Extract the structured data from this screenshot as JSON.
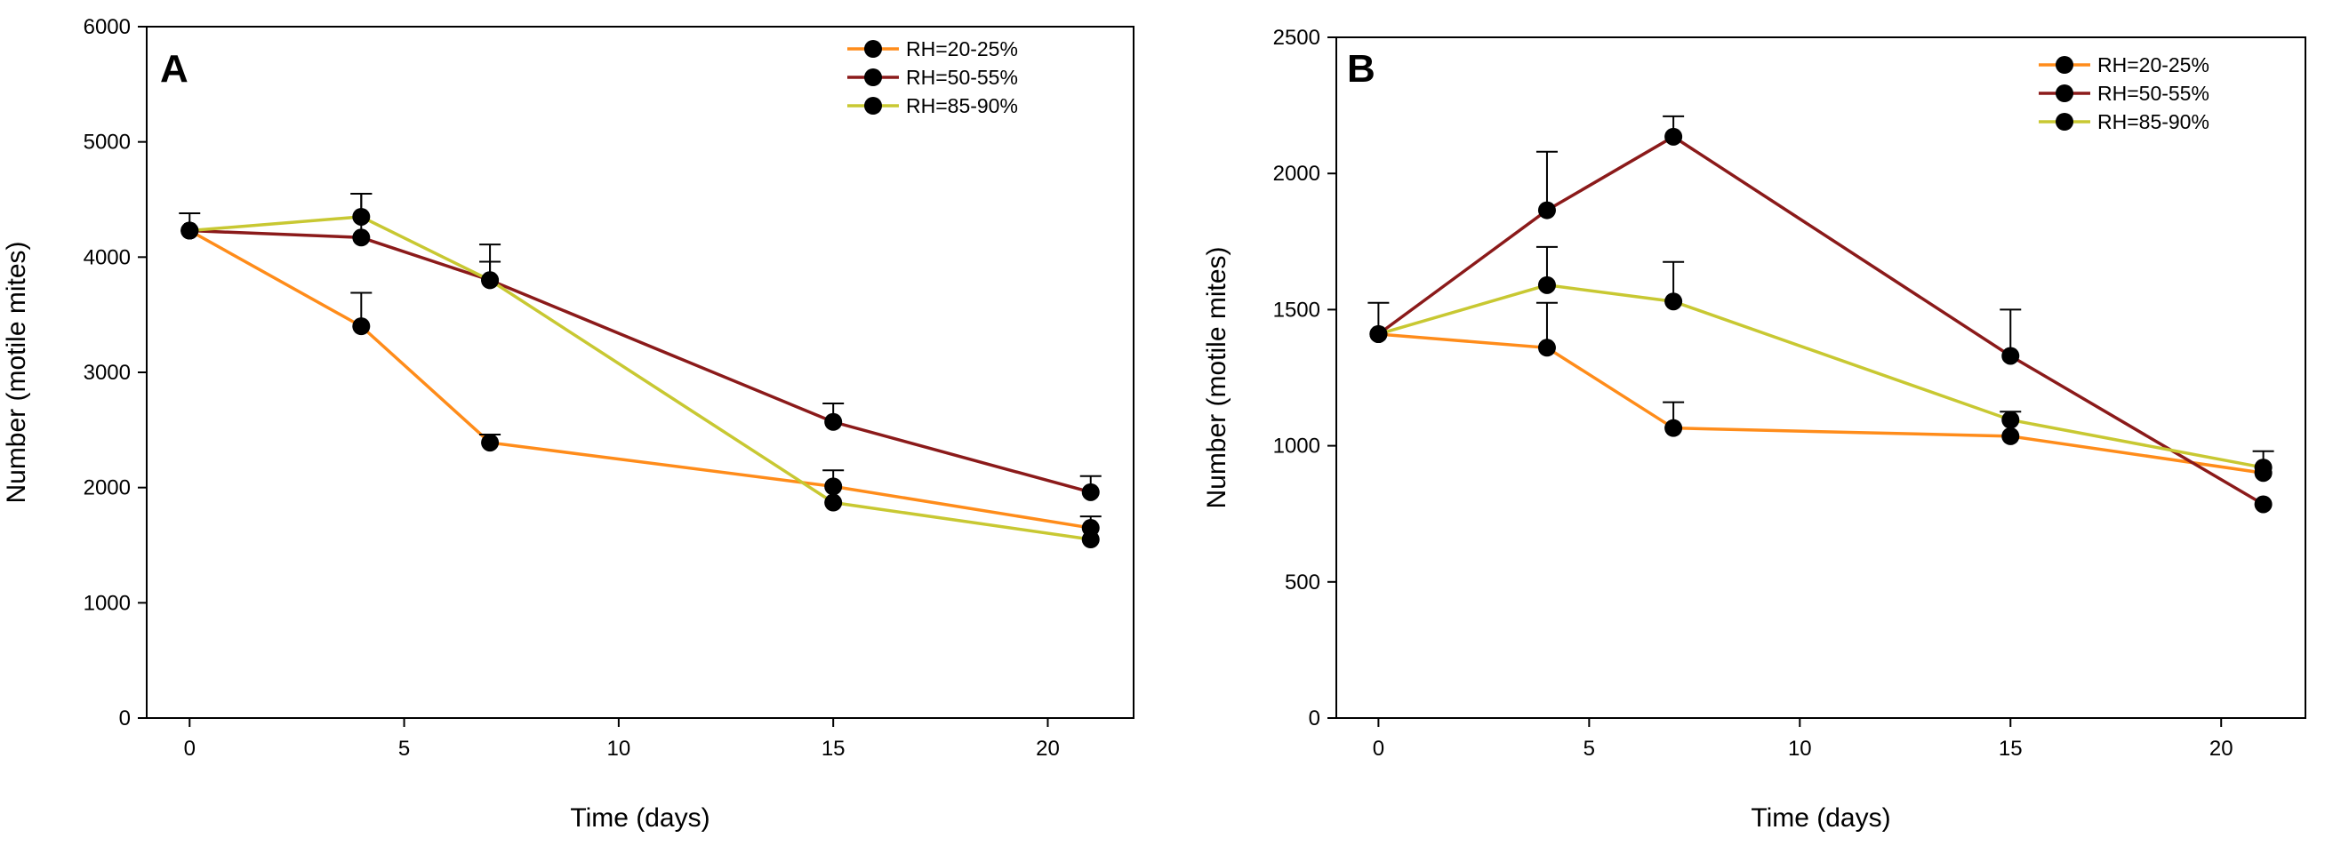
{
  "chart_data": [
    {
      "type": "line",
      "panel_label": "A",
      "xlabel": "Time (days)",
      "ylabel": "Number (motile mites)",
      "xlim": [
        -1,
        22
      ],
      "ylim": [
        0,
        6000
      ],
      "xticks": [
        0,
        5,
        10,
        15,
        20
      ],
      "yticks": [
        0,
        1000,
        2000,
        3000,
        4000,
        5000,
        6000
      ],
      "x": [
        0,
        4,
        7,
        15,
        21
      ],
      "legend_position": "top-right",
      "grid": false,
      "series": [
        {
          "name": "RH=20-25%",
          "color": "#ff8c1a",
          "values": [
            4230,
            3400,
            2390,
            2010,
            1650
          ],
          "errors": [
            0,
            290,
            70,
            140,
            100
          ]
        },
        {
          "name": "RH=50-55%",
          "color": "#8b1a1a",
          "values": [
            4230,
            4170,
            3800,
            2570,
            1960
          ],
          "errors": [
            150,
            380,
            160,
            160,
            140
          ]
        },
        {
          "name": "RH=85-90%",
          "color": "#c8c832",
          "values": [
            4230,
            4350,
            3800,
            1870,
            1550
          ],
          "errors": [
            0,
            200,
            310,
            0,
            0
          ]
        }
      ]
    },
    {
      "type": "line",
      "panel_label": "B",
      "xlabel": "Time (days)",
      "ylabel": "Number (motile mites)",
      "xlim": [
        -1,
        22
      ],
      "ylim": [
        0,
        2500
      ],
      "xticks": [
        0,
        5,
        10,
        15,
        20
      ],
      "yticks": [
        0,
        500,
        1000,
        1500,
        2000,
        2500
      ],
      "x": [
        0,
        4,
        7,
        15,
        21
      ],
      "legend_position": "top-right",
      "grid": false,
      "series": [
        {
          "name": "RH=20-25%",
          "color": "#ff8c1a",
          "values": [
            1410,
            1360,
            1065,
            1035,
            900
          ],
          "errors": [
            0,
            165,
            95,
            0,
            0
          ]
        },
        {
          "name": "RH=50-55%",
          "color": "#8b1a1a",
          "values": [
            1410,
            1865,
            2135,
            1330,
            785
          ],
          "errors": [
            115,
            215,
            75,
            170,
            0
          ]
        },
        {
          "name": "RH=85-90%",
          "color": "#c8c832",
          "values": [
            1410,
            1590,
            1530,
            1095,
            920
          ],
          "errors": [
            0,
            140,
            145,
            30,
            60
          ]
        }
      ]
    }
  ]
}
